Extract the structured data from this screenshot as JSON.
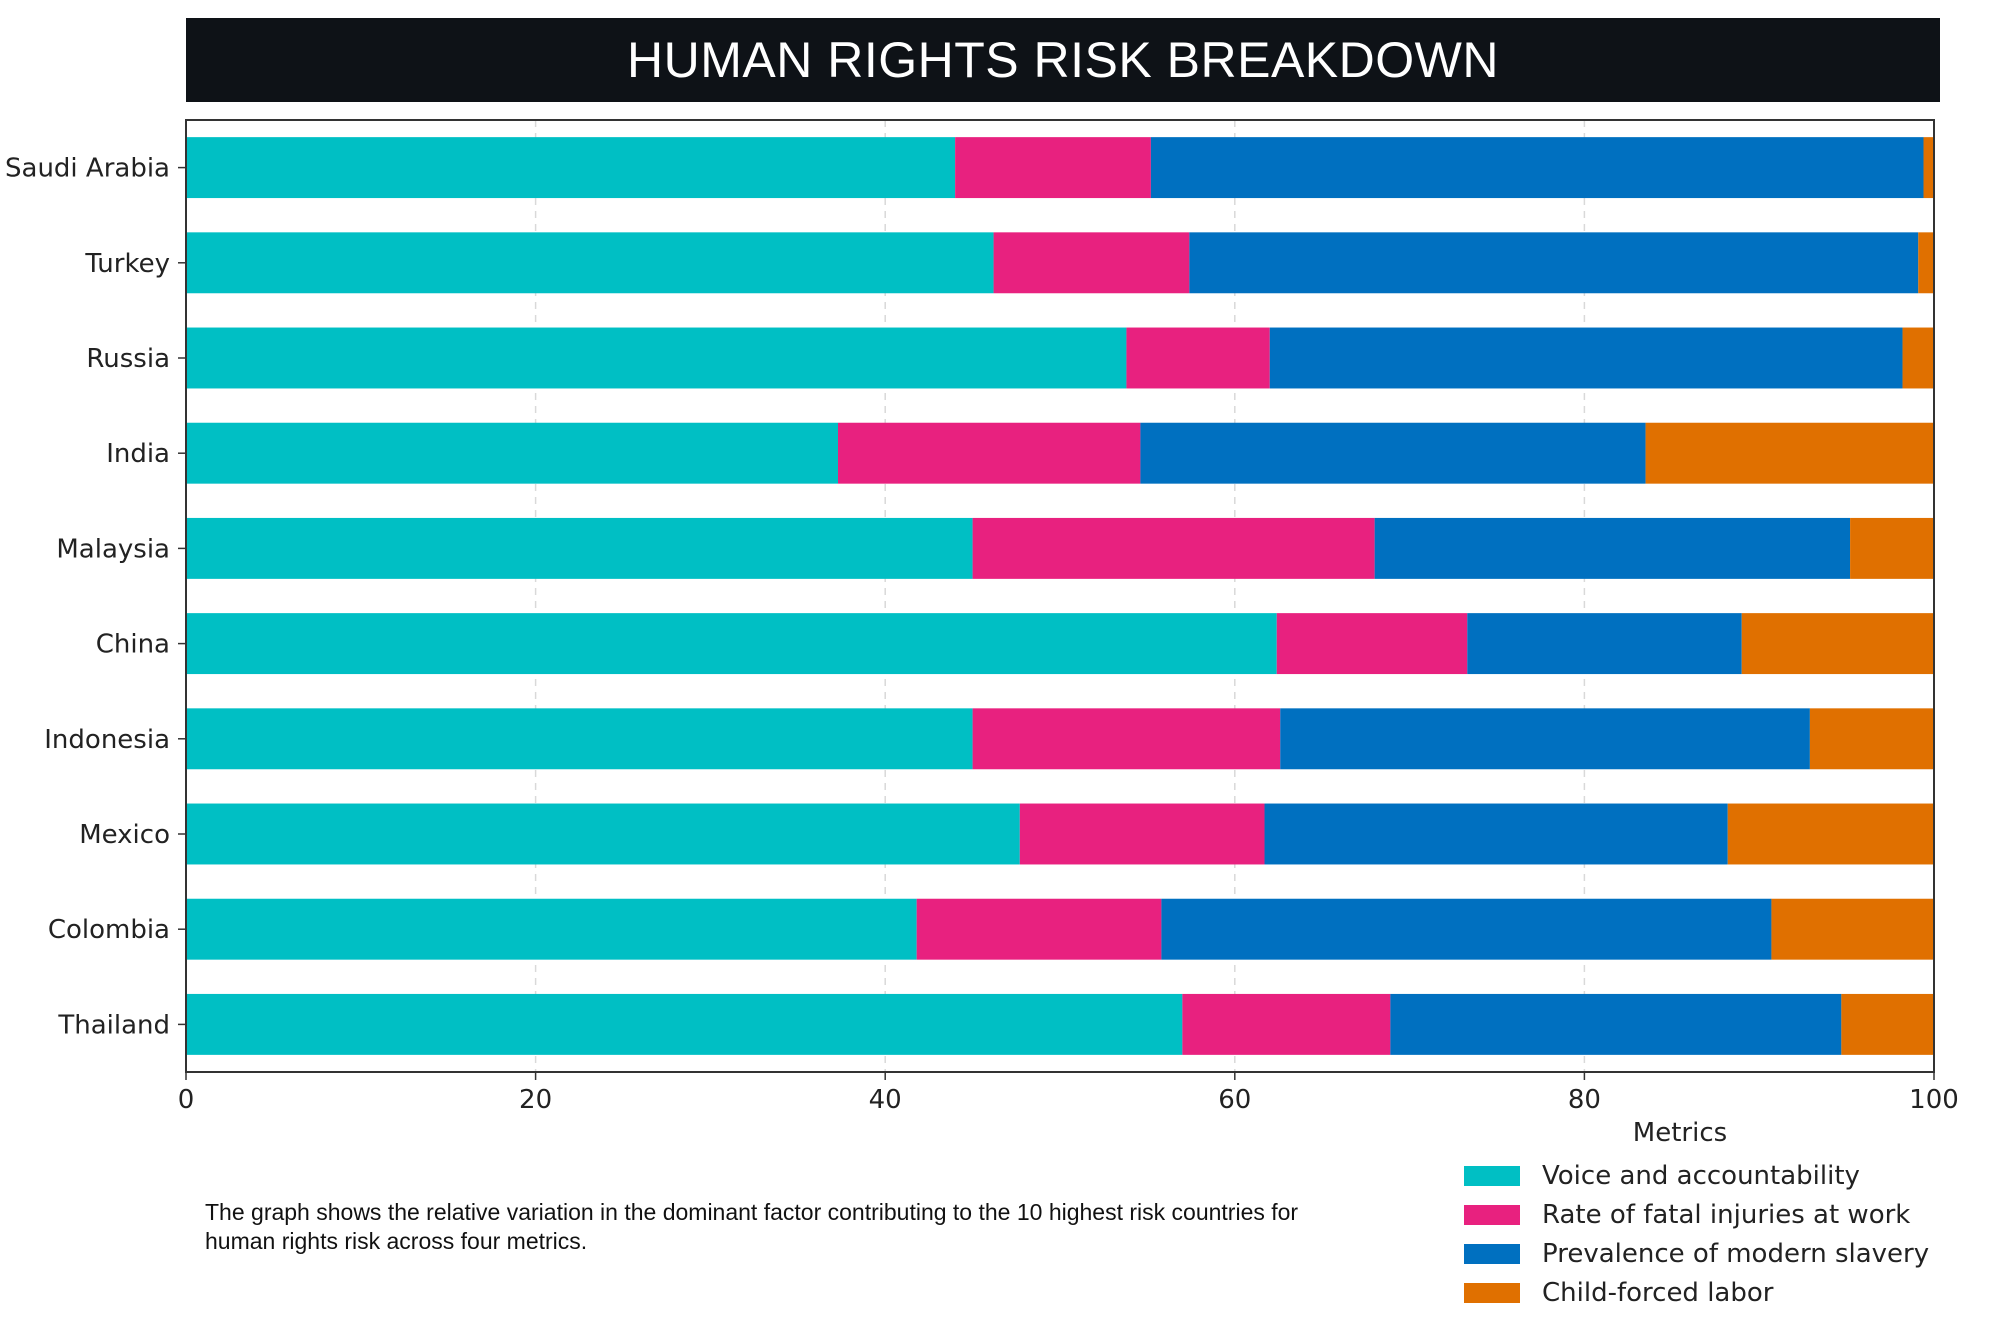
{
  "title": "HUMAN RIGHTS RISK BREAKDOWN",
  "caption": "The graph shows the relative variation in the dominant factor contributing to the 10 highest risk countries for human rights risk across four metrics.",
  "legend": {
    "title": "Metrics",
    "items": [
      {
        "label": "Voice and accountability",
        "color": "#00bfc4"
      },
      {
        "label": "Rate of fatal injuries at work",
        "color": "#e8217f"
      },
      {
        "label": "Prevalence of modern slavery",
        "color": "#0070c0"
      },
      {
        "label": "Child-forced labor",
        "color": "#e07000"
      }
    ]
  },
  "chart_data": {
    "type": "bar",
    "orientation": "horizontal",
    "stacked": true,
    "categories": [
      "Saudi Arabia",
      "Turkey",
      "Russia",
      "India",
      "Malaysia",
      "China",
      "Indonesia",
      "Mexico",
      "Colombia",
      "Thailand"
    ],
    "series": [
      {
        "name": "Voice and accountability",
        "color": "#00bfc4",
        "values": [
          44,
          46.2,
          53.8,
          37.3,
          45,
          62.4,
          45,
          47.7,
          41.8,
          57
        ]
      },
      {
        "name": "Rate of fatal injuries at work",
        "color": "#e8217f",
        "values": [
          11.2,
          11.2,
          8.2,
          17.3,
          23,
          10.9,
          17.6,
          14,
          14,
          11.9
        ]
      },
      {
        "name": "Prevalence of modern slavery",
        "color": "#0070c0",
        "values": [
          44.2,
          41.7,
          36.2,
          28.9,
          27.2,
          15.7,
          30.3,
          26.5,
          34.9,
          25.8
        ]
      },
      {
        "name": "Child-forced labor",
        "color": "#e07000",
        "values": [
          0.6,
          0.9,
          1.8,
          16.5,
          4.8,
          11,
          7.1,
          11.8,
          9.3,
          5.3
        ]
      }
    ],
    "xlim": [
      0,
      100
    ],
    "xticks": [
      0,
      20,
      40,
      60,
      80,
      100
    ],
    "xlabel": "",
    "ylabel": "",
    "grid": true,
    "legend_position": "bottom-right"
  }
}
